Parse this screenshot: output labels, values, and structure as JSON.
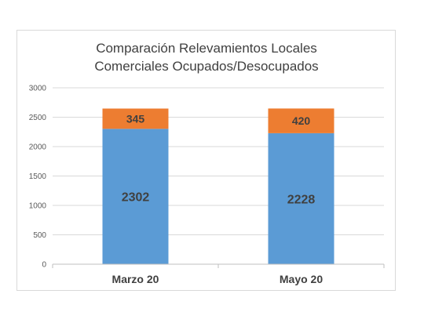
{
  "chart_data": {
    "type": "bar",
    "stacked": true,
    "title": "Comparación Relevamientos Locales Comerciales Ocupados/Desocupados",
    "title_lines": [
      "Comparación Relevamientos Locales",
      "Comerciales Ocupados/Desocupados"
    ],
    "categories": [
      "Marzo 20",
      "Mayo 20"
    ],
    "series": [
      {
        "values": [
          2302,
          2228
        ],
        "color": "#5b9bd5"
      },
      {
        "values": [
          345,
          420
        ],
        "color": "#ed7d31"
      }
    ],
    "ylim": [
      0,
      3000
    ],
    "yticks": [
      "0",
      "500",
      "1000",
      "1500",
      "2000",
      "2500",
      "3000"
    ],
    "grid": true,
    "legend": "none",
    "xlabel": "",
    "ylabel": ""
  }
}
